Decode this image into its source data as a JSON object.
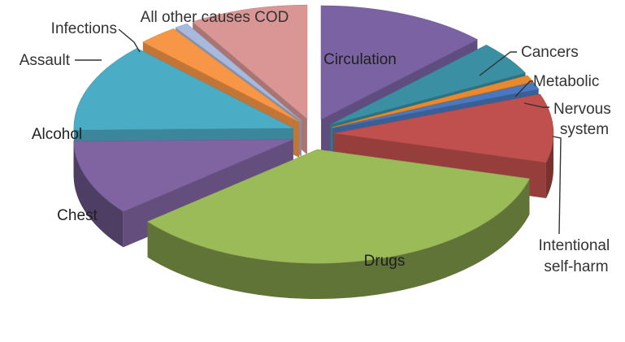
{
  "chart_data": {
    "type": "pie",
    "variant": "3d-exploded",
    "title": "",
    "slices": [
      {
        "label": "Circulation",
        "value": 13,
        "color": "#7b63a3"
      },
      {
        "label": "Cancers",
        "value": 5,
        "color": "#3a8fa3"
      },
      {
        "label": "Metabolic",
        "value": 1,
        "color": "#e8892f"
      },
      {
        "label": "Nervous system",
        "label_lines": [
          "Nervous",
          "system"
        ],
        "value": 1,
        "color": "#4a78c0"
      },
      {
        "label": "Intentional self-harm",
        "label_lines": [
          "Intentional",
          "self-harm"
        ],
        "value": 10,
        "color": "#c0504d"
      },
      {
        "label": "Drugs",
        "value": 36,
        "color": "#9bbb59"
      },
      {
        "label": "Chest",
        "value": 11,
        "color": "#8064a2"
      },
      {
        "label": "Alcohol",
        "value": 13,
        "color": "#4bacc6"
      },
      {
        "label": "Assault",
        "value": 3,
        "color": "#f79646"
      },
      {
        "label": "Infections",
        "value": 1,
        "color": "#a7b9dd"
      },
      {
        "label": "All other causes COD",
        "value": 9,
        "color": "#d99694"
      }
    ],
    "legend": "none",
    "data_labels": "category name"
  }
}
